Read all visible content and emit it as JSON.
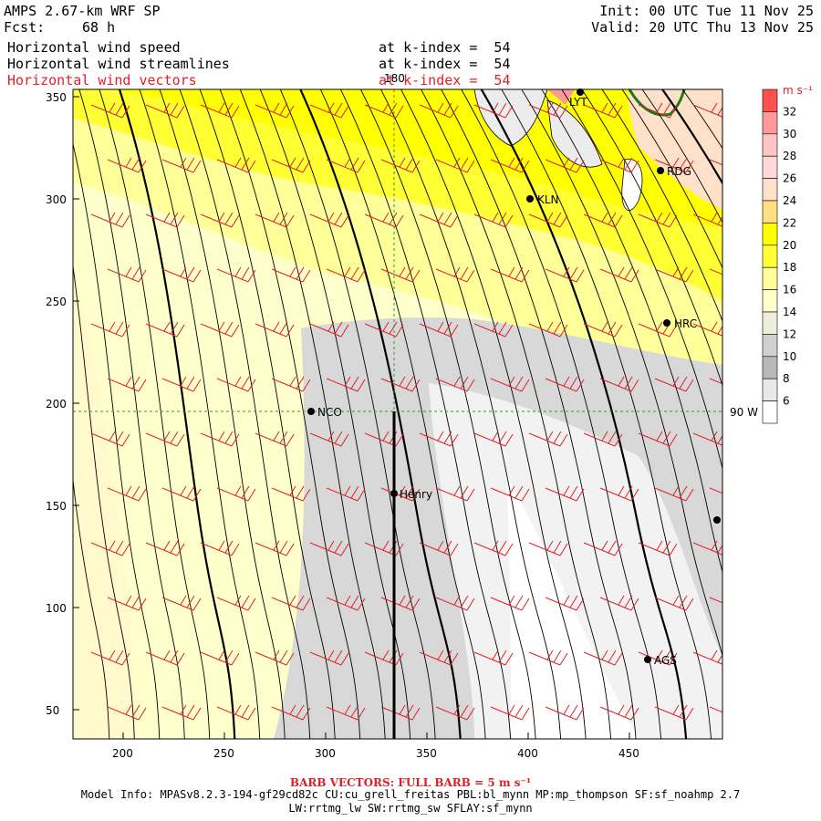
{
  "header": {
    "model": "AMPS 2.67-km WRF SP",
    "fcst_label": "Fcst:",
    "fcst_value": "68 h",
    "init": "Init: 00 UTC Tue 11 Nov 25",
    "valid": "Valid: 20 UTC Thu 13 Nov 25"
  },
  "fields": [
    {
      "name": "Horizontal wind speed",
      "level": "at k-index =  54",
      "color": "#000000"
    },
    {
      "name": "Horizontal wind streamlines",
      "level": "at k-index =  54",
      "color": "#000000"
    },
    {
      "name": "Horizontal wind vectors",
      "level": "at k-index =  54",
      "color": "#e0202a"
    }
  ],
  "colorbar": {
    "unit": "m s⁻¹",
    "ticks": [
      "32",
      "30",
      "28",
      "26",
      "24",
      "22",
      "20",
      "18",
      "16",
      "14",
      "12",
      "10",
      "8",
      "6"
    ],
    "colors": [
      "#ff5050",
      "#ff9999",
      "#ffc4c4",
      "#ffd9d9",
      "#ffe0c8",
      "#ffdf80",
      "#ffff00",
      "#ffff33",
      "#ffff99",
      "#ffffcc",
      "#eeeedd",
      "#d0d0d0",
      "#b8b8b8",
      "#e8e8e8",
      "#ffffff"
    ]
  },
  "map": {
    "x_ticks": [
      "200",
      "250",
      "300",
      "350",
      "400",
      "450"
    ],
    "y_ticks": [
      "350",
      "300",
      "250",
      "200",
      "150",
      "100",
      "50"
    ],
    "lon_label": "180",
    "lat_label": "90 W",
    "stations": [
      {
        "name": "LYT"
      },
      {
        "name": "RDG"
      },
      {
        "name": "KLN"
      },
      {
        "name": "HRC"
      },
      {
        "name": "NCO"
      },
      {
        "name": "Henry"
      },
      {
        "name": "AGS"
      },
      {
        "name": ""
      }
    ]
  },
  "footer": {
    "barb_note": "BARB VECTORS: FULL BARB = 5 m s⁻¹",
    "model_info_1": "Model Info: MPASv8.2.3-194-gf29cd82c CU:cu_grell_freitas PBL:bl_mynn MP:mp_thompson SF:sf_noahmp 2.7",
    "model_info_2": "LW:rrtmg_lw SW:rrtmg_sw SFLAY:sf_mynn"
  },
  "colors": {
    "barb": "#e0202a",
    "streamline": "#000000",
    "guide": "#2e9a2e",
    "coast": "#1a7a1a"
  }
}
